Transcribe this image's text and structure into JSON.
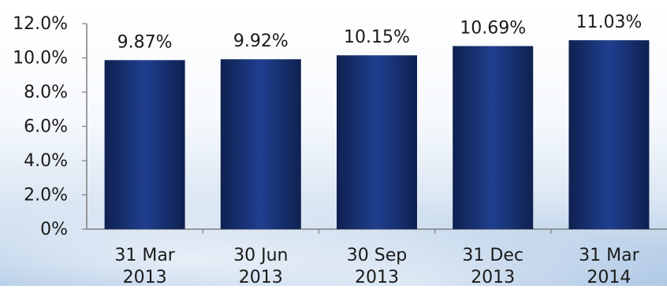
{
  "chart_data": {
    "type": "bar",
    "categories": [
      [
        "31 Mar",
        "2013"
      ],
      [
        "30 Jun",
        "2013"
      ],
      [
        "30 Sep",
        "2013"
      ],
      [
        "31 Dec",
        "2013"
      ],
      [
        "31 Mar",
        "2014"
      ]
    ],
    "values": [
      9.87,
      9.92,
      10.15,
      10.69,
      11.03
    ],
    "data_labels": [
      "9.87%",
      "9.92%",
      "10.15%",
      "10.69%",
      "11.03%"
    ],
    "yticks": [
      0,
      2,
      4,
      6,
      8,
      10,
      12
    ],
    "ytick_labels": [
      "0%",
      "2.0%",
      "4.0%",
      "6.0%",
      "8.0%",
      "10.0%",
      "12.0%"
    ],
    "ylim": [
      0,
      12
    ],
    "title": "",
    "xlabel": "",
    "ylabel": "",
    "grid": false,
    "legend": "none",
    "colors": {
      "bar_edge": "#0f2150",
      "bar_center": "#1f3f8f",
      "axis": "#7f7f7f",
      "text": "#1a1a1a"
    }
  }
}
